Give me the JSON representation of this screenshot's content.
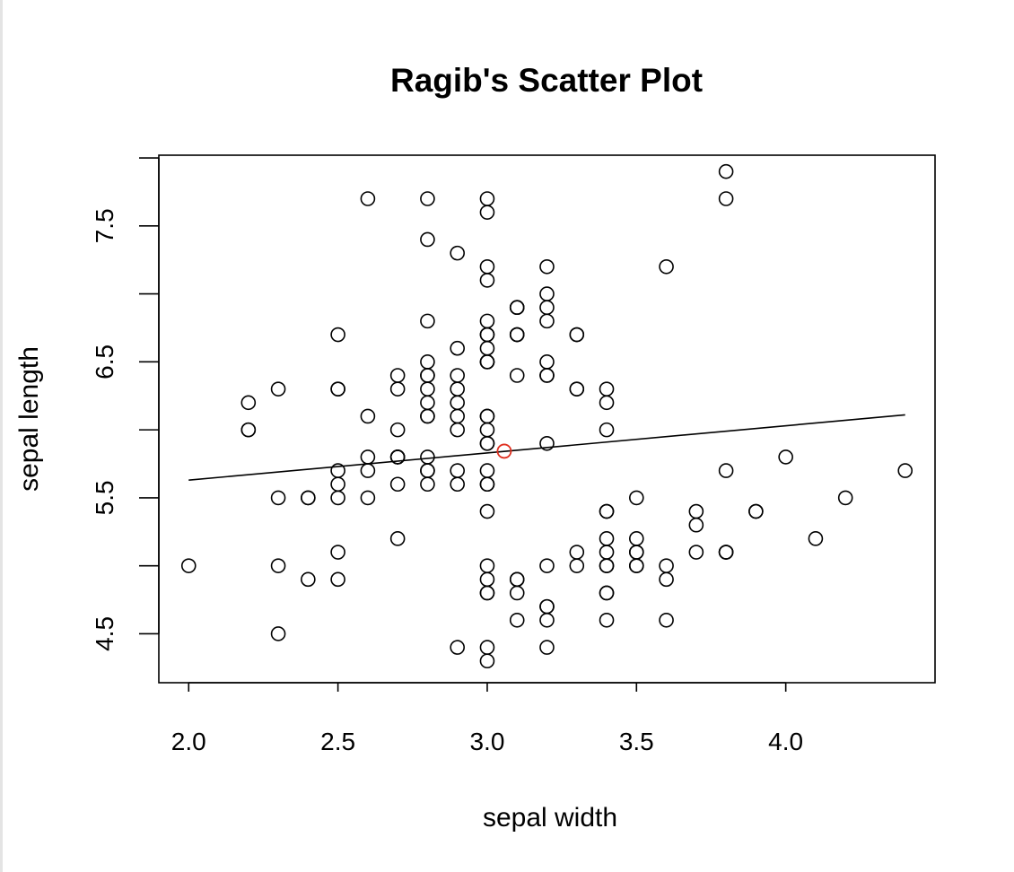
{
  "chart_data": {
    "type": "scatter",
    "title": "Ragib's Scatter Plot",
    "xlabel": "sepal width",
    "ylabel": "sepal length",
    "xlim": [
      1.9,
      4.5
    ],
    "ylim": [
      4.14,
      8.02
    ],
    "xticks": [
      "2.0",
      "2.5",
      "3.0",
      "3.5",
      "4.0"
    ],
    "yticks": [
      "4.5",
      "5.5",
      "6.5",
      "7.5"
    ],
    "ytick_marks": [
      4.5,
      5.0,
      5.5,
      6.0,
      6.5,
      7.0,
      7.5,
      8.0
    ],
    "grid": false,
    "point_color": "#000000",
    "highlight_color": "#e03020",
    "points": [
      [
        3.5,
        5.1
      ],
      [
        3.0,
        4.9
      ],
      [
        3.2,
        4.7
      ],
      [
        3.1,
        4.6
      ],
      [
        3.6,
        5.0
      ],
      [
        3.9,
        5.4
      ],
      [
        3.4,
        4.6
      ],
      [
        3.4,
        5.0
      ],
      [
        2.9,
        4.4
      ],
      [
        3.1,
        4.9
      ],
      [
        3.7,
        5.4
      ],
      [
        3.4,
        4.8
      ],
      [
        3.0,
        4.8
      ],
      [
        3.0,
        4.3
      ],
      [
        4.0,
        5.8
      ],
      [
        4.4,
        5.7
      ],
      [
        3.9,
        5.4
      ],
      [
        3.5,
        5.1
      ],
      [
        3.8,
        5.7
      ],
      [
        3.8,
        5.1
      ],
      [
        3.4,
        5.4
      ],
      [
        3.7,
        5.1
      ],
      [
        3.6,
        4.6
      ],
      [
        3.3,
        5.1
      ],
      [
        3.4,
        4.8
      ],
      [
        3.0,
        5.0
      ],
      [
        3.4,
        5.0
      ],
      [
        3.5,
        5.2
      ],
      [
        3.4,
        5.2
      ],
      [
        3.2,
        4.7
      ],
      [
        3.1,
        4.8
      ],
      [
        3.4,
        5.4
      ],
      [
        4.1,
        5.2
      ],
      [
        4.2,
        5.5
      ],
      [
        3.1,
        4.9
      ],
      [
        3.2,
        5.0
      ],
      [
        3.5,
        5.5
      ],
      [
        3.6,
        4.9
      ],
      [
        3.0,
        4.4
      ],
      [
        3.4,
        5.1
      ],
      [
        3.5,
        5.0
      ],
      [
        2.3,
        4.5
      ],
      [
        3.2,
        4.4
      ],
      [
        3.5,
        5.0
      ],
      [
        3.8,
        5.1
      ],
      [
        3.0,
        4.8
      ],
      [
        3.8,
        5.1
      ],
      [
        3.2,
        4.6
      ],
      [
        3.7,
        5.3
      ],
      [
        3.3,
        5.0
      ],
      [
        3.2,
        7.0
      ],
      [
        3.2,
        6.4
      ],
      [
        3.1,
        6.9
      ],
      [
        2.3,
        5.5
      ],
      [
        2.8,
        6.5
      ],
      [
        2.8,
        5.7
      ],
      [
        3.3,
        6.3
      ],
      [
        2.4,
        4.9
      ],
      [
        2.9,
        6.6
      ],
      [
        2.7,
        5.2
      ],
      [
        2.0,
        5.0
      ],
      [
        3.0,
        5.9
      ],
      [
        2.2,
        6.0
      ],
      [
        2.9,
        6.1
      ],
      [
        2.9,
        5.6
      ],
      [
        3.1,
        6.7
      ],
      [
        3.0,
        5.6
      ],
      [
        2.7,
        5.8
      ],
      [
        2.2,
        6.2
      ],
      [
        2.5,
        5.6
      ],
      [
        3.2,
        5.9
      ],
      [
        2.8,
        6.1
      ],
      [
        2.5,
        6.3
      ],
      [
        2.8,
        6.1
      ],
      [
        2.9,
        6.4
      ],
      [
        3.0,
        6.6
      ],
      [
        2.8,
        6.8
      ],
      [
        3.0,
        6.7
      ],
      [
        2.9,
        6.0
      ],
      [
        2.6,
        5.7
      ],
      [
        2.4,
        5.5
      ],
      [
        2.4,
        5.5
      ],
      [
        2.7,
        5.8
      ],
      [
        2.7,
        6.0
      ],
      [
        3.0,
        5.4
      ],
      [
        3.4,
        6.0
      ],
      [
        3.1,
        6.7
      ],
      [
        2.3,
        6.3
      ],
      [
        3.0,
        5.6
      ],
      [
        2.5,
        5.5
      ],
      [
        2.6,
        5.5
      ],
      [
        3.0,
        6.1
      ],
      [
        2.6,
        5.8
      ],
      [
        2.3,
        5.0
      ],
      [
        2.7,
        5.6
      ],
      [
        3.0,
        5.7
      ],
      [
        2.9,
        5.7
      ],
      [
        2.9,
        6.2
      ],
      [
        2.5,
        5.1
      ],
      [
        2.8,
        5.7
      ],
      [
        3.3,
        6.3
      ],
      [
        2.7,
        5.8
      ],
      [
        3.0,
        7.1
      ],
      [
        2.9,
        6.3
      ],
      [
        3.0,
        6.5
      ],
      [
        3.0,
        7.6
      ],
      [
        2.5,
        4.9
      ],
      [
        2.9,
        7.3
      ],
      [
        2.5,
        6.7
      ],
      [
        3.6,
        7.2
      ],
      [
        3.2,
        6.5
      ],
      [
        2.7,
        6.4
      ],
      [
        3.0,
        6.8
      ],
      [
        2.5,
        5.7
      ],
      [
        2.8,
        5.8
      ],
      [
        3.2,
        6.4
      ],
      [
        3.0,
        6.5
      ],
      [
        3.8,
        7.7
      ],
      [
        2.6,
        7.7
      ],
      [
        2.2,
        6.0
      ],
      [
        3.2,
        6.9
      ],
      [
        2.8,
        5.6
      ],
      [
        2.8,
        7.7
      ],
      [
        2.7,
        6.3
      ],
      [
        3.3,
        6.7
      ],
      [
        3.2,
        7.2
      ],
      [
        2.8,
        6.2
      ],
      [
        3.0,
        6.1
      ],
      [
        2.8,
        6.4
      ],
      [
        3.0,
        7.2
      ],
      [
        2.8,
        7.4
      ],
      [
        3.8,
        7.9
      ],
      [
        2.8,
        6.4
      ],
      [
        2.8,
        6.3
      ],
      [
        2.6,
        6.1
      ],
      [
        3.0,
        7.7
      ],
      [
        3.4,
        6.3
      ],
      [
        3.1,
        6.4
      ],
      [
        3.0,
        6.0
      ],
      [
        3.1,
        6.9
      ],
      [
        3.1,
        6.7
      ],
      [
        3.1,
        6.9
      ],
      [
        2.7,
        5.8
      ],
      [
        3.2,
        6.8
      ],
      [
        3.3,
        6.7
      ],
      [
        3.0,
        6.7
      ],
      [
        2.5,
        6.3
      ],
      [
        3.0,
        6.5
      ],
      [
        3.4,
        6.2
      ],
      [
        3.0,
        5.9
      ]
    ],
    "highlight_point": [
      3.057,
      5.843
    ],
    "regression_line": {
      "x": [
        2.0,
        4.4
      ],
      "y": [
        5.63,
        6.11
      ]
    }
  }
}
